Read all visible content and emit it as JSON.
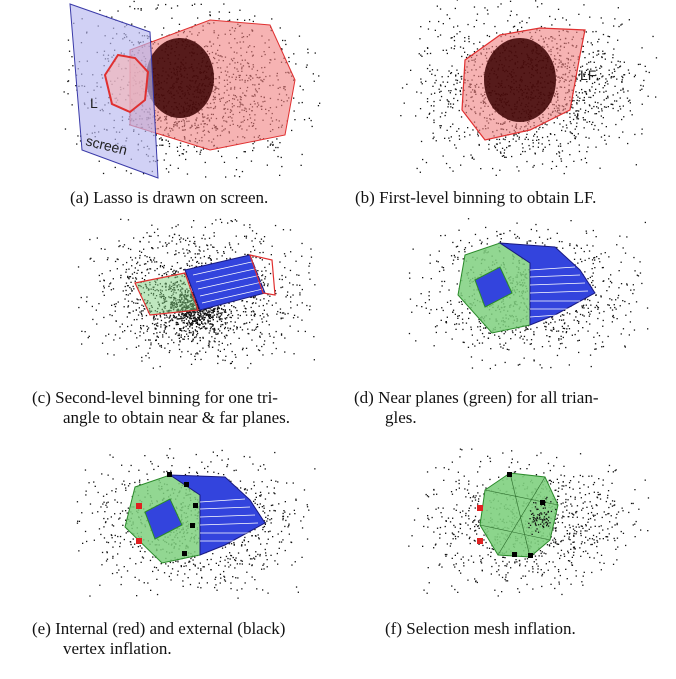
{
  "panels": [
    {
      "id": "a",
      "caption_tag": "(a)",
      "caption_text": "Lasso is drawn on screen.",
      "labels": {
        "lasso": "L",
        "screen": "screen"
      }
    },
    {
      "id": "b",
      "caption_tag": "(b)",
      "caption_text": "First-level binning to obtain LF.",
      "labels": {
        "frustum": "LF"
      }
    },
    {
      "id": "c",
      "caption_tag": "(c)",
      "caption_text": "Second-level binning for one tri-",
      "caption_line2": "angle to obtain near & far planes."
    },
    {
      "id": "d",
      "caption_tag": "(d)",
      "caption_text": "Near planes (green) for all trian-",
      "caption_line2": "gles."
    },
    {
      "id": "e",
      "caption_tag": "(e)",
      "caption_text": "Internal (red) and external (black)",
      "caption_line2": "vertex inflation."
    },
    {
      "id": "f",
      "caption_tag": "(f)",
      "caption_text": "Selection mesh inflation."
    }
  ],
  "colors": {
    "points": "#111111",
    "lasso": "#e03030",
    "lasso_fill": "#f08080",
    "screen_fill": "#b8b8f0",
    "screen_stroke": "#3a3aa8",
    "near_plane": "#7fd07f",
    "far_plane": "#3344dd",
    "internal_vertex": "#e02020",
    "external_vertex": "#000000"
  }
}
